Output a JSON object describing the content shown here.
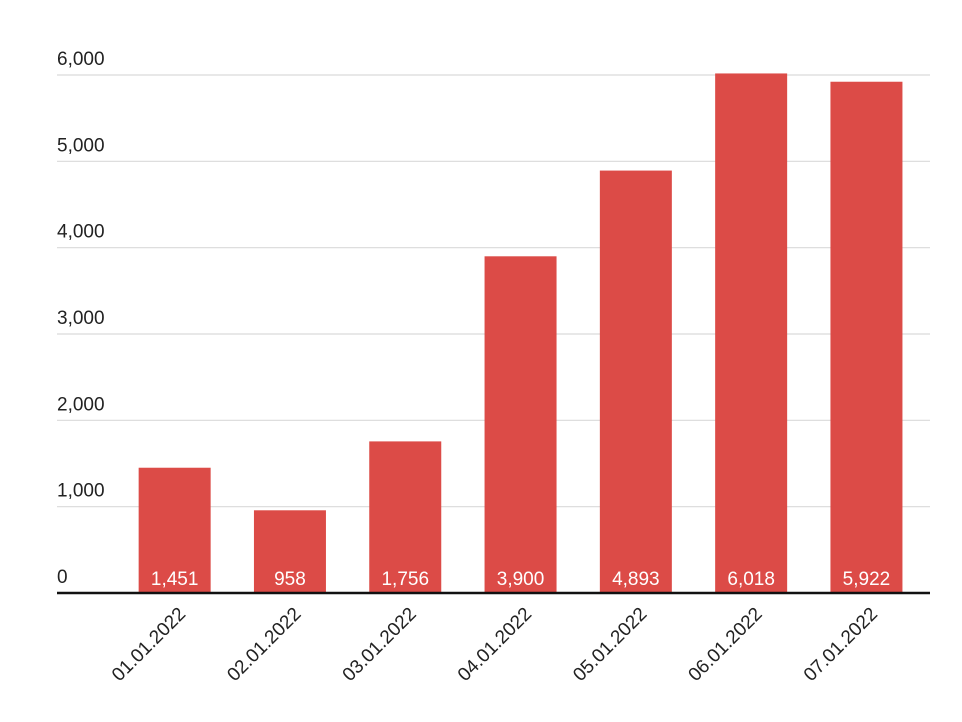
{
  "chart_data": {
    "type": "bar",
    "categories": [
      "01.01.2022",
      "02.01.2022",
      "03.01.2022",
      "04.01.2022",
      "05.01.2022",
      "06.01.2022",
      "07.01.2022"
    ],
    "values": [
      1451,
      958,
      1756,
      3900,
      4893,
      6018,
      5922
    ],
    "data_labels": [
      "1,451",
      "958",
      "1,756",
      "3,900",
      "4,893",
      "6,018",
      "5,922"
    ],
    "y_ticks": [
      0,
      1000,
      2000,
      3000,
      4000,
      5000,
      6000
    ],
    "y_tick_labels": [
      "0",
      "1,000",
      "2,000",
      "3,000",
      "4,000",
      "5,000",
      "6,000"
    ],
    "ylim": [
      0,
      6000
    ],
    "grid": true,
    "legend": "none",
    "bar_color": "#dc4b47",
    "grid_color": "#d9d9d9",
    "axis_color": "#111111"
  }
}
